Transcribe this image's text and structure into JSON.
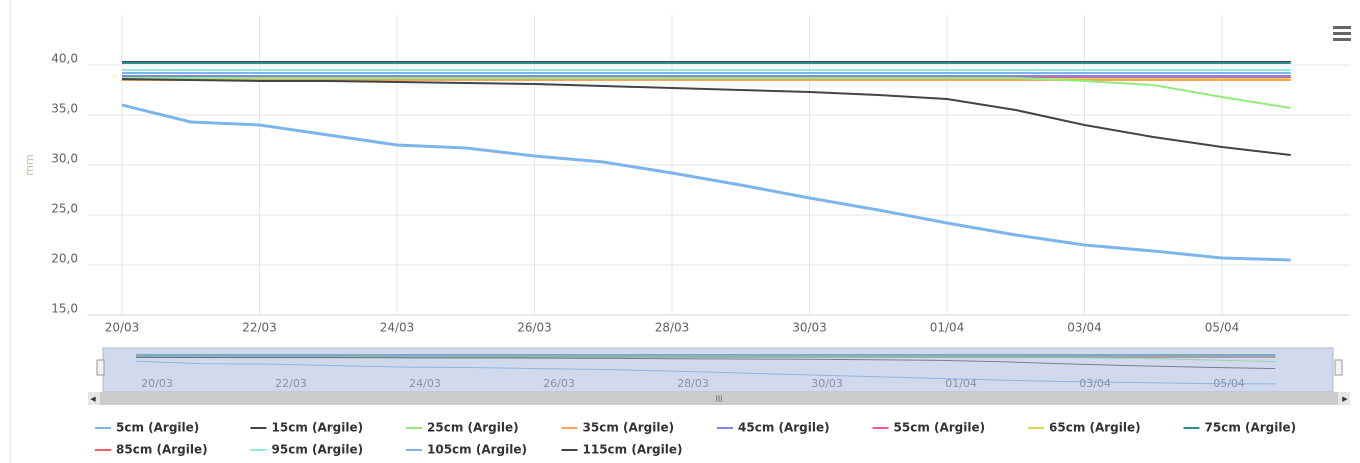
{
  "chart_data": {
    "type": "line",
    "y_label": "mm",
    "categories": [
      "20/03",
      null,
      "22/03",
      null,
      "24/03",
      null,
      "26/03",
      null,
      "28/03",
      null,
      "30/03",
      null,
      "01/04",
      null,
      "03/04",
      null,
      "05/04",
      null
    ],
    "ylim": [
      15,
      45
    ],
    "yticks": [
      {
        "value": 15,
        "label": "15,0"
      },
      {
        "value": 20,
        "label": "20,0"
      },
      {
        "value": 25,
        "label": "25,0"
      },
      {
        "value": 30,
        "label": "30,0"
      },
      {
        "value": 35,
        "label": "35,0"
      },
      {
        "value": 40,
        "label": "40,0"
      }
    ],
    "grid": true,
    "series": [
      {
        "name": "5cm (Argile)",
        "color": "#7cb5ec",
        "values": [
          36.0,
          34.3,
          34.0,
          33.0,
          32.0,
          31.7,
          30.9,
          30.3,
          29.2,
          28.0,
          26.7,
          25.5,
          24.2,
          23.0,
          22.0,
          21.4,
          20.7,
          20.5
        ]
      },
      {
        "name": "15cm (Argile)",
        "color": "#434348",
        "values": [
          38.6,
          38.5,
          38.4,
          38.4,
          38.3,
          38.2,
          38.1,
          37.9,
          37.7,
          37.5,
          37.3,
          37.0,
          36.6,
          35.5,
          34.0,
          32.8,
          31.8,
          31.0
        ]
      },
      {
        "name": "25cm (Argile)",
        "color": "#90ed7d",
        "values": [
          38.7,
          38.7,
          38.7,
          38.7,
          38.7,
          38.7,
          38.7,
          38.7,
          38.7,
          38.7,
          38.7,
          38.7,
          38.7,
          38.7,
          38.4,
          38.0,
          36.8,
          35.7
        ]
      },
      {
        "name": "35cm (Argile)",
        "color": "#f7a35c",
        "values": [
          38.5,
          38.5,
          38.5,
          38.5,
          38.5,
          38.5,
          38.5,
          38.5,
          38.5,
          38.5,
          38.5,
          38.5,
          38.5,
          38.5,
          38.5,
          38.5,
          38.5,
          38.5
        ]
      },
      {
        "name": "45cm (Argile)",
        "color": "#8085e9",
        "values": [
          38.9,
          38.9,
          38.9,
          38.9,
          38.9,
          38.9,
          38.9,
          38.9,
          38.9,
          38.9,
          38.9,
          38.9,
          38.9,
          38.9,
          38.9,
          38.9,
          38.9,
          38.9
        ]
      },
      {
        "name": "55cm (Argile)",
        "color": "#f15c80",
        "values": [
          38.8,
          38.8,
          38.8,
          38.8,
          38.8,
          38.8,
          38.8,
          38.8,
          38.8,
          38.8,
          38.8,
          38.8,
          38.8,
          38.8,
          38.8,
          38.8,
          38.8,
          38.8
        ]
      },
      {
        "name": "65cm (Argile)",
        "color": "#e4d354",
        "values": [
          38.6,
          38.6,
          38.6,
          38.6,
          38.6,
          38.6,
          38.6,
          38.6,
          38.6,
          38.6,
          38.6,
          38.6,
          38.6,
          38.6,
          38.6,
          38.6,
          38.6,
          38.6
        ]
      },
      {
        "name": "75cm (Argile)",
        "color": "#2b908f",
        "values": [
          40.2,
          40.2,
          40.2,
          40.2,
          40.2,
          40.2,
          40.2,
          40.2,
          40.2,
          40.2,
          40.2,
          40.2,
          40.2,
          40.2,
          40.2,
          40.2,
          40.2,
          40.2
        ]
      },
      {
        "name": "85cm (Argile)",
        "color": "#f45b5b",
        "values": [
          38.6,
          38.6,
          38.6,
          38.6,
          38.6,
          38.6,
          38.6,
          38.6,
          38.6,
          38.6,
          38.6,
          38.6,
          38.6,
          38.6,
          38.6,
          38.6,
          38.6,
          38.6
        ]
      },
      {
        "name": "95cm (Argile)",
        "color": "#91e8e1",
        "values": [
          39.5,
          39.5,
          39.5,
          39.5,
          39.5,
          39.5,
          39.5,
          39.5,
          39.5,
          39.5,
          39.5,
          39.5,
          39.5,
          39.5,
          39.5,
          39.5,
          39.5,
          39.5
        ]
      },
      {
        "name": "105cm (Argile)",
        "color": "#7cb5ec",
        "values": [
          39.2,
          39.2,
          39.2,
          39.2,
          39.2,
          39.2,
          39.2,
          39.2,
          39.2,
          39.2,
          39.2,
          39.2,
          39.2,
          39.2,
          39.2,
          39.2,
          39.2,
          39.2
        ]
      },
      {
        "name": "115cm (Argile)",
        "color": "#434348",
        "values": [
          40.3,
          40.3,
          40.3,
          40.3,
          40.3,
          40.3,
          40.3,
          40.3,
          40.3,
          40.3,
          40.3,
          40.3,
          40.3,
          40.3,
          40.3,
          40.3,
          40.3,
          40.3
        ]
      }
    ]
  }
}
